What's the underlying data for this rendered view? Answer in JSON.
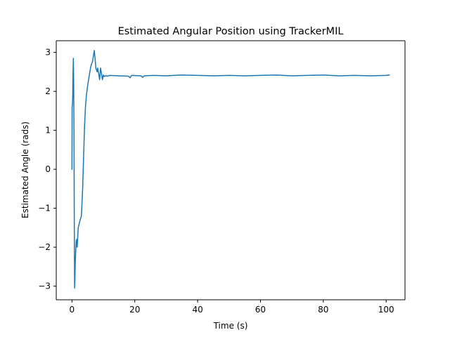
{
  "chart_data": {
    "type": "line",
    "title": "Estimated Angular Position using TrackerMIL",
    "xlabel": "Time (s)",
    "ylabel": "Estimated Angle (rads)",
    "xlim": [
      -5,
      106
    ],
    "ylim": [
      -3.35,
      3.3
    ],
    "xticks": [
      0,
      20,
      40,
      60,
      80,
      100
    ],
    "xtick_labels": [
      "0",
      "20",
      "40",
      "60",
      "80",
      "100"
    ],
    "yticks": [
      -3,
      -2,
      -1,
      0,
      1,
      2,
      3
    ],
    "ytick_labels": [
      "−3",
      "−2",
      "−1",
      "0",
      "1",
      "2",
      "3"
    ],
    "grid": false,
    "legend": "none",
    "series": [
      {
        "color": "#1f77b4",
        "x": [
          0,
          0.05,
          0.15,
          0.25,
          0.35,
          0.45,
          0.55,
          0.65,
          0.75,
          0.85,
          0.95,
          1.05,
          1.2,
          1.35,
          1.5,
          1.65,
          1.8,
          2.0,
          2.3,
          2.6,
          3.0,
          3.4,
          3.7,
          4.0,
          4.3,
          4.6,
          5.0,
          5.3,
          5.6,
          5.9,
          6.2,
          6.5,
          6.8,
          7.1,
          7.4,
          7.6,
          7.8,
          8.0,
          8.2,
          8.5,
          8.8,
          9.1,
          9.4,
          9.7,
          10.0,
          10.3,
          10.7,
          11.2,
          12,
          15,
          18,
          18.5,
          19,
          22,
          22.5,
          23,
          26,
          30,
          35,
          40,
          45,
          50,
          55,
          60,
          65,
          70,
          75,
          80,
          85,
          90,
          95,
          100,
          101
        ],
        "y": [
          0.0,
          1.6,
          1.65,
          1.9,
          2.5,
          2.85,
          2.2,
          0.8,
          -1.5,
          -3.05,
          -2.8,
          -2.4,
          -2.1,
          -1.85,
          -1.8,
          -2.0,
          -1.8,
          -1.5,
          -1.4,
          -1.3,
          -1.2,
          -0.5,
          0.3,
          1.1,
          1.6,
          1.9,
          2.15,
          2.3,
          2.45,
          2.6,
          2.7,
          2.75,
          2.9,
          3.05,
          2.8,
          2.6,
          2.55,
          2.5,
          2.6,
          2.45,
          2.3,
          2.6,
          2.45,
          2.3,
          2.42,
          2.38,
          2.4,
          2.39,
          2.41,
          2.4,
          2.39,
          2.35,
          2.41,
          2.4,
          2.36,
          2.4,
          2.41,
          2.4,
          2.42,
          2.41,
          2.4,
          2.41,
          2.4,
          2.41,
          2.42,
          2.4,
          2.41,
          2.42,
          2.4,
          2.41,
          2.4,
          2.41,
          2.42
        ]
      }
    ]
  }
}
